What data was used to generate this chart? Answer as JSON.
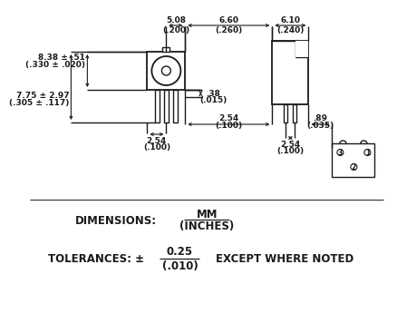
{
  "bg_color": "#ffffff",
  "line_color": "#1a1a1a",
  "dimensions_label": "DIMENSIONS:",
  "mm_label": "MM",
  "inches_label": "(INCHES)",
  "tolerances_label": "TOLERANCES: ±",
  "tolerance_val": "0.25",
  "tolerance_inch": "(.010)",
  "except_label": "EXCEPT WHERE NOTED",
  "dim_5_08": "5.08",
  "dim_5_08i": "(.200)",
  "dim_6_60": "6.60",
  "dim_6_60i": "(.260)",
  "dim_6_10": "6.10",
  "dim_6_10i": "(.240)",
  "dim_8_38": "8.38 ± .51",
  "dim_8_38i": "(.330 ± .020)",
  "dim_38": ".38",
  "dim_38i": "(.015)",
  "dim_7_75": "7.75 ± 2.97",
  "dim_7_75i": "(.305 ± .117)",
  "dim_2_54a": "2.54",
  "dim_2_54ai": "(.100)",
  "dim_2_54b": "2.54",
  "dim_2_54bi": "(.100)",
  "dim_2_54c": "2.54",
  "dim_2_54ci": "(.100)",
  "dim_89": ".89",
  "dim_89i": "(.035)"
}
